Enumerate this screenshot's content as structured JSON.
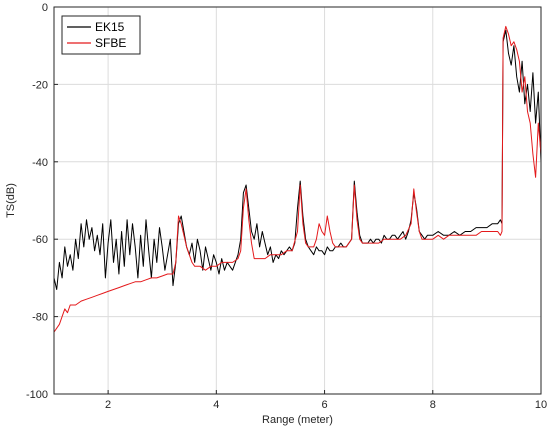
{
  "chart_data": {
    "type": "line",
    "xlabel": "Range (meter)",
    "ylabel": "TS(dB)",
    "xlim": [
      1,
      10
    ],
    "ylim": [
      -100,
      0
    ],
    "x_ticks": [
      2,
      4,
      6,
      8,
      10
    ],
    "y_ticks": [
      0,
      -20,
      -40,
      -60,
      -80,
      -100
    ],
    "grid": true,
    "legend_position": "top-left",
    "series": [
      {
        "name": "EK15",
        "color": "#000000",
        "points": [
          [
            1.0,
            -70
          ],
          [
            1.05,
            -73
          ],
          [
            1.1,
            -66
          ],
          [
            1.15,
            -70
          ],
          [
            1.2,
            -62
          ],
          [
            1.25,
            -67
          ],
          [
            1.3,
            -64
          ],
          [
            1.35,
            -68
          ],
          [
            1.4,
            -60
          ],
          [
            1.45,
            -65
          ],
          [
            1.5,
            -56
          ],
          [
            1.55,
            -62
          ],
          [
            1.6,
            -55
          ],
          [
            1.65,
            -60
          ],
          [
            1.7,
            -57
          ],
          [
            1.75,
            -63
          ],
          [
            1.8,
            -59
          ],
          [
            1.85,
            -64
          ],
          [
            1.9,
            -56
          ],
          [
            1.95,
            -70
          ],
          [
            2.0,
            -61
          ],
          [
            2.05,
            -55
          ],
          [
            2.1,
            -66
          ],
          [
            2.15,
            -60
          ],
          [
            2.2,
            -69
          ],
          [
            2.25,
            -58
          ],
          [
            2.3,
            -67
          ],
          [
            2.35,
            -55
          ],
          [
            2.4,
            -64
          ],
          [
            2.45,
            -56
          ],
          [
            2.5,
            -62
          ],
          [
            2.55,
            -70
          ],
          [
            2.6,
            -59
          ],
          [
            2.65,
            -67
          ],
          [
            2.7,
            -55
          ],
          [
            2.75,
            -63
          ],
          [
            2.8,
            -70
          ],
          [
            2.85,
            -60
          ],
          [
            2.9,
            -66
          ],
          [
            2.95,
            -57
          ],
          [
            3.0,
            -62
          ],
          [
            3.05,
            -68
          ],
          [
            3.1,
            -64
          ],
          [
            3.15,
            -60
          ],
          [
            3.2,
            -72
          ],
          [
            3.25,
            -66
          ],
          [
            3.3,
            -56
          ],
          [
            3.35,
            -54
          ],
          [
            3.4,
            -58
          ],
          [
            3.45,
            -62
          ],
          [
            3.5,
            -64
          ],
          [
            3.55,
            -61
          ],
          [
            3.6,
            -66
          ],
          [
            3.65,
            -60
          ],
          [
            3.7,
            -63
          ],
          [
            3.75,
            -68
          ],
          [
            3.8,
            -62
          ],
          [
            3.85,
            -65
          ],
          [
            3.9,
            -68
          ],
          [
            3.95,
            -64
          ],
          [
            4.0,
            -66
          ],
          [
            4.05,
            -69
          ],
          [
            4.1,
            -65
          ],
          [
            4.15,
            -68
          ],
          [
            4.2,
            -66
          ],
          [
            4.25,
            -67
          ],
          [
            4.3,
            -68
          ],
          [
            4.35,
            -66
          ],
          [
            4.4,
            -64
          ],
          [
            4.45,
            -60
          ],
          [
            4.5,
            -48
          ],
          [
            4.55,
            -46
          ],
          [
            4.6,
            -52
          ],
          [
            4.65,
            -58
          ],
          [
            4.7,
            -60
          ],
          [
            4.75,
            -56
          ],
          [
            4.8,
            -62
          ],
          [
            4.85,
            -58
          ],
          [
            4.9,
            -61
          ],
          [
            4.95,
            -64
          ],
          [
            5.0,
            -62
          ],
          [
            5.05,
            -66
          ],
          [
            5.1,
            -64
          ],
          [
            5.15,
            -65
          ],
          [
            5.2,
            -63
          ],
          [
            5.25,
            -64
          ],
          [
            5.3,
            -63
          ],
          [
            5.35,
            -62
          ],
          [
            5.4,
            -63
          ],
          [
            5.45,
            -61
          ],
          [
            5.5,
            -52
          ],
          [
            5.55,
            -45
          ],
          [
            5.6,
            -54
          ],
          [
            5.65,
            -60
          ],
          [
            5.7,
            -62
          ],
          [
            5.75,
            -63
          ],
          [
            5.8,
            -64
          ],
          [
            5.85,
            -62
          ],
          [
            5.9,
            -63
          ],
          [
            5.95,
            -63
          ],
          [
            6.0,
            -64
          ],
          [
            6.05,
            -62
          ],
          [
            6.1,
            -63
          ],
          [
            6.15,
            -63
          ],
          [
            6.2,
            -62
          ],
          [
            6.25,
            -62
          ],
          [
            6.3,
            -61
          ],
          [
            6.35,
            -62
          ],
          [
            6.4,
            -62
          ],
          [
            6.45,
            -61
          ],
          [
            6.5,
            -60
          ],
          [
            6.55,
            -45
          ],
          [
            6.6,
            -53
          ],
          [
            6.65,
            -59
          ],
          [
            6.7,
            -61
          ],
          [
            6.75,
            -61
          ],
          [
            6.8,
            -61
          ],
          [
            6.85,
            -60
          ],
          [
            6.9,
            -61
          ],
          [
            6.95,
            -60
          ],
          [
            7.0,
            -60
          ],
          [
            7.05,
            -61
          ],
          [
            7.1,
            -59
          ],
          [
            7.15,
            -60
          ],
          [
            7.2,
            -60
          ],
          [
            7.25,
            -59
          ],
          [
            7.3,
            -59
          ],
          [
            7.35,
            -60
          ],
          [
            7.4,
            -59
          ],
          [
            7.45,
            -58
          ],
          [
            7.5,
            -60
          ],
          [
            7.55,
            -58
          ],
          [
            7.6,
            -55
          ],
          [
            7.65,
            -48
          ],
          [
            7.7,
            -52
          ],
          [
            7.75,
            -58
          ],
          [
            7.8,
            -59
          ],
          [
            7.85,
            -60
          ],
          [
            7.9,
            -59
          ],
          [
            7.95,
            -59
          ],
          [
            8.0,
            -59
          ],
          [
            8.1,
            -58
          ],
          [
            8.2,
            -59
          ],
          [
            8.3,
            -59
          ],
          [
            8.4,
            -58
          ],
          [
            8.5,
            -59
          ],
          [
            8.6,
            -58
          ],
          [
            8.7,
            -58
          ],
          [
            8.8,
            -57
          ],
          [
            8.9,
            -57
          ],
          [
            9.0,
            -57
          ],
          [
            9.1,
            -56
          ],
          [
            9.2,
            -56
          ],
          [
            9.25,
            -55
          ],
          [
            9.28,
            -56
          ],
          [
            9.3,
            -9
          ],
          [
            9.35,
            -6
          ],
          [
            9.4,
            -12
          ],
          [
            9.45,
            -15
          ],
          [
            9.5,
            -10
          ],
          [
            9.55,
            -18
          ],
          [
            9.6,
            -22
          ],
          [
            9.65,
            -14
          ],
          [
            9.7,
            -25
          ],
          [
            9.75,
            -20
          ],
          [
            9.8,
            -27
          ],
          [
            9.85,
            -17
          ],
          [
            9.9,
            -30
          ],
          [
            9.95,
            -22
          ],
          [
            10.0,
            -40
          ]
        ]
      },
      {
        "name": "SFBE",
        "color": "#e41a1c",
        "points": [
          [
            1.0,
            -84
          ],
          [
            1.05,
            -83
          ],
          [
            1.1,
            -82
          ],
          [
            1.15,
            -80
          ],
          [
            1.2,
            -78
          ],
          [
            1.25,
            -79
          ],
          [
            1.3,
            -77
          ],
          [
            1.4,
            -77
          ],
          [
            1.5,
            -76
          ],
          [
            1.6,
            -75.5
          ],
          [
            1.7,
            -75
          ],
          [
            1.8,
            -74.5
          ],
          [
            1.9,
            -74
          ],
          [
            2.0,
            -73.5
          ],
          [
            2.1,
            -73
          ],
          [
            2.2,
            -72.5
          ],
          [
            2.3,
            -72
          ],
          [
            2.4,
            -71.5
          ],
          [
            2.5,
            -71
          ],
          [
            2.6,
            -71
          ],
          [
            2.7,
            -70.5
          ],
          [
            2.8,
            -70
          ],
          [
            2.9,
            -70
          ],
          [
            3.0,
            -69.5
          ],
          [
            3.1,
            -69
          ],
          [
            3.2,
            -69
          ],
          [
            3.25,
            -66
          ],
          [
            3.3,
            -54
          ],
          [
            3.35,
            -56
          ],
          [
            3.4,
            -59
          ],
          [
            3.45,
            -62
          ],
          [
            3.5,
            -64
          ],
          [
            3.55,
            -66
          ],
          [
            3.6,
            -67
          ],
          [
            3.7,
            -67
          ],
          [
            3.8,
            -68
          ],
          [
            3.9,
            -67
          ],
          [
            4.0,
            -67
          ],
          [
            4.1,
            -66
          ],
          [
            4.2,
            -66
          ],
          [
            4.3,
            -66
          ],
          [
            4.4,
            -65
          ],
          [
            4.45,
            -63
          ],
          [
            4.5,
            -52
          ],
          [
            4.55,
            -47
          ],
          [
            4.6,
            -55
          ],
          [
            4.65,
            -61
          ],
          [
            4.7,
            -65
          ],
          [
            4.8,
            -65
          ],
          [
            4.9,
            -65
          ],
          [
            5.0,
            -64
          ],
          [
            5.1,
            -64
          ],
          [
            5.2,
            -64
          ],
          [
            5.3,
            -63
          ],
          [
            5.4,
            -63
          ],
          [
            5.5,
            -58
          ],
          [
            5.55,
            -46
          ],
          [
            5.6,
            -56
          ],
          [
            5.65,
            -61
          ],
          [
            5.7,
            -62
          ],
          [
            5.8,
            -62
          ],
          [
            5.85,
            -60
          ],
          [
            5.9,
            -56
          ],
          [
            5.95,
            -58
          ],
          [
            6.0,
            -59
          ],
          [
            6.05,
            -54
          ],
          [
            6.1,
            -58
          ],
          [
            6.15,
            -61
          ],
          [
            6.2,
            -62
          ],
          [
            6.3,
            -62
          ],
          [
            6.4,
            -62
          ],
          [
            6.5,
            -60
          ],
          [
            6.55,
            -46
          ],
          [
            6.6,
            -55
          ],
          [
            6.65,
            -60
          ],
          [
            6.7,
            -61
          ],
          [
            6.8,
            -61
          ],
          [
            6.9,
            -61
          ],
          [
            7.0,
            -61
          ],
          [
            7.1,
            -60
          ],
          [
            7.2,
            -60
          ],
          [
            7.3,
            -60
          ],
          [
            7.4,
            -60
          ],
          [
            7.5,
            -59
          ],
          [
            7.6,
            -56
          ],
          [
            7.65,
            -47
          ],
          [
            7.7,
            -53
          ],
          [
            7.75,
            -58
          ],
          [
            7.8,
            -60
          ],
          [
            7.9,
            -60
          ],
          [
            8.0,
            -60
          ],
          [
            8.1,
            -59
          ],
          [
            8.2,
            -60
          ],
          [
            8.3,
            -59
          ],
          [
            8.4,
            -59
          ],
          [
            8.5,
            -59
          ],
          [
            8.6,
            -59
          ],
          [
            8.7,
            -59
          ],
          [
            8.8,
            -59
          ],
          [
            8.9,
            -58
          ],
          [
            9.0,
            -58
          ],
          [
            9.1,
            -58
          ],
          [
            9.2,
            -58
          ],
          [
            9.25,
            -59
          ],
          [
            9.28,
            -58
          ],
          [
            9.3,
            -8
          ],
          [
            9.35,
            -5
          ],
          [
            9.4,
            -7
          ],
          [
            9.45,
            -10
          ],
          [
            9.5,
            -9
          ],
          [
            9.55,
            -11
          ],
          [
            9.6,
            -14
          ],
          [
            9.65,
            -22
          ],
          [
            9.7,
            -18
          ],
          [
            9.75,
            -27
          ],
          [
            9.8,
            -30
          ],
          [
            9.85,
            -38
          ],
          [
            9.9,
            -44
          ],
          [
            9.95,
            -30
          ],
          [
            10.0,
            -38
          ]
        ]
      }
    ]
  }
}
